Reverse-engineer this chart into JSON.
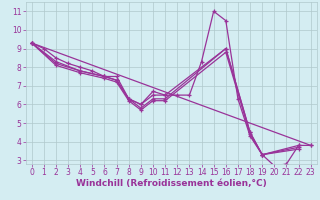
{
  "lines": [
    {
      "x": [
        0,
        1,
        2,
        3,
        4,
        5,
        6,
        7,
        8,
        9,
        10,
        11,
        12,
        13,
        14,
        15,
        16,
        17,
        18,
        19,
        20,
        21,
        22,
        23
      ],
      "y": [
        9.3,
        9.0,
        8.5,
        8.2,
        8.0,
        7.8,
        7.5,
        7.5,
        6.3,
        6.0,
        6.7,
        6.5,
        6.5,
        6.5,
        8.3,
        11.0,
        10.5,
        6.3,
        4.3,
        3.3,
        2.7,
        2.8,
        3.8,
        3.8
      ]
    },
    {
      "x": [
        0,
        2,
        4,
        6,
        7,
        8,
        9,
        10,
        11,
        16,
        18,
        19,
        22
      ],
      "y": [
        9.3,
        8.3,
        7.8,
        7.5,
        7.3,
        6.3,
        6.0,
        6.5,
        6.5,
        9.0,
        4.5,
        3.3,
        3.8
      ]
    },
    {
      "x": [
        0,
        2,
        4,
        6,
        7,
        8,
        9,
        10,
        11,
        16,
        18,
        19,
        22
      ],
      "y": [
        9.3,
        8.2,
        7.8,
        7.5,
        7.3,
        6.3,
        5.8,
        6.3,
        6.3,
        9.0,
        4.5,
        3.3,
        3.7
      ]
    },
    {
      "x": [
        0,
        2,
        4,
        6,
        7,
        8,
        9,
        10,
        11,
        16,
        18,
        19,
        22
      ],
      "y": [
        9.3,
        8.1,
        7.7,
        7.4,
        7.2,
        6.2,
        5.7,
        6.2,
        6.2,
        8.8,
        4.4,
        3.3,
        3.6
      ]
    },
    {
      "x": [
        0,
        23
      ],
      "y": [
        9.3,
        3.8
      ]
    }
  ],
  "line_color": "#993399",
  "bg_color": "#d4edf2",
  "grid_color": "#b0c8cc",
  "xlabel": "Windchill (Refroidissement éolien,°C)",
  "xlim": [
    -0.5,
    23.5
  ],
  "ylim": [
    2.8,
    11.5
  ],
  "xticks": [
    0,
    1,
    2,
    3,
    4,
    5,
    6,
    7,
    8,
    9,
    10,
    11,
    12,
    13,
    14,
    15,
    16,
    17,
    18,
    19,
    20,
    21,
    22,
    23
  ],
  "yticks": [
    3,
    4,
    5,
    6,
    7,
    8,
    9,
    10,
    11
  ],
  "marker": "+",
  "markersize": 3.5,
  "linewidth": 0.9,
  "xlabel_fontsize": 6.5,
  "tick_fontsize": 5.5,
  "label_color": "#993399"
}
